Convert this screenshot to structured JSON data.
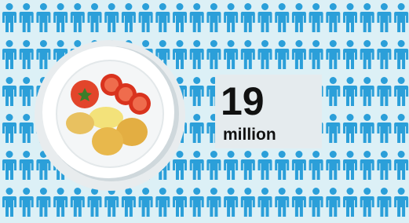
{
  "stat": {
    "number": "19",
    "unit": "million"
  }
}
